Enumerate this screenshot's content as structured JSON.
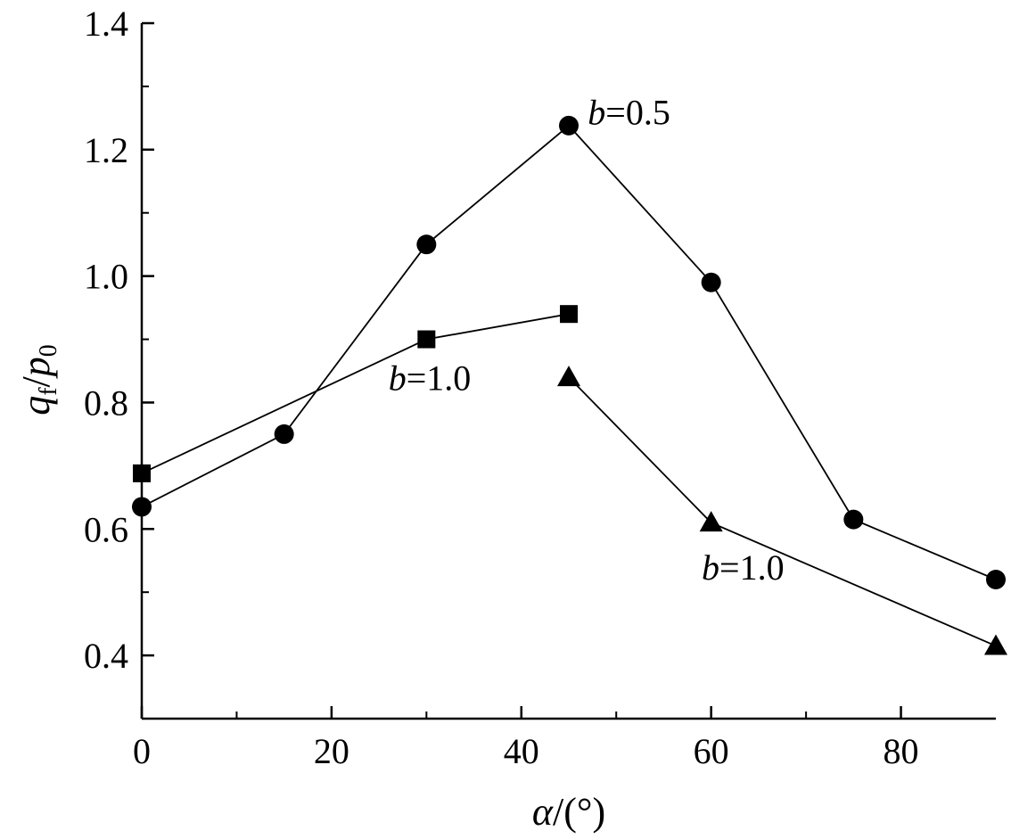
{
  "chart_data": {
    "type": "line",
    "xlabel": {
      "symbol": "α",
      "rest": "/(°)"
    },
    "ylabel": {
      "q": "q",
      "q_sub": "f",
      "slash": "/",
      "p": "p",
      "p_sub": "0"
    },
    "xlim": [
      0,
      90
    ],
    "ylim": [
      0.3,
      1.4
    ],
    "xticks": [
      0,
      20,
      40,
      60,
      80
    ],
    "xtick_labels": [
      "0",
      "20",
      "40",
      "60",
      "80"
    ],
    "yticks": [
      0.4,
      0.6,
      0.8,
      1.0,
      1.2,
      1.4
    ],
    "ytick_labels": [
      "0.4",
      "0.6",
      "0.8",
      "1.0",
      "1.2",
      "1.4"
    ],
    "grid": false,
    "series": [
      {
        "marker": "circle",
        "x": [
          0,
          15,
          30,
          45,
          60,
          75,
          90
        ],
        "y": [
          0.635,
          0.75,
          1.05,
          1.238,
          0.99,
          0.615,
          0.52
        ]
      },
      {
        "marker": "square",
        "x": [
          0,
          30,
          45
        ],
        "y": [
          0.688,
          0.9,
          0.94
        ]
      },
      {
        "marker": "triangle",
        "x": [
          45,
          60,
          90
        ],
        "y": [
          0.84,
          0.61,
          0.415
        ]
      }
    ],
    "annotations": [
      {
        "var": "b",
        "text": "=0.5",
        "x": 47,
        "y": 1.24
      },
      {
        "var": "b",
        "text": "=1.0",
        "x": 26,
        "y": 0.82
      },
      {
        "var": "b",
        "text": "=1.0",
        "x": 59,
        "y": 0.52
      }
    ]
  }
}
